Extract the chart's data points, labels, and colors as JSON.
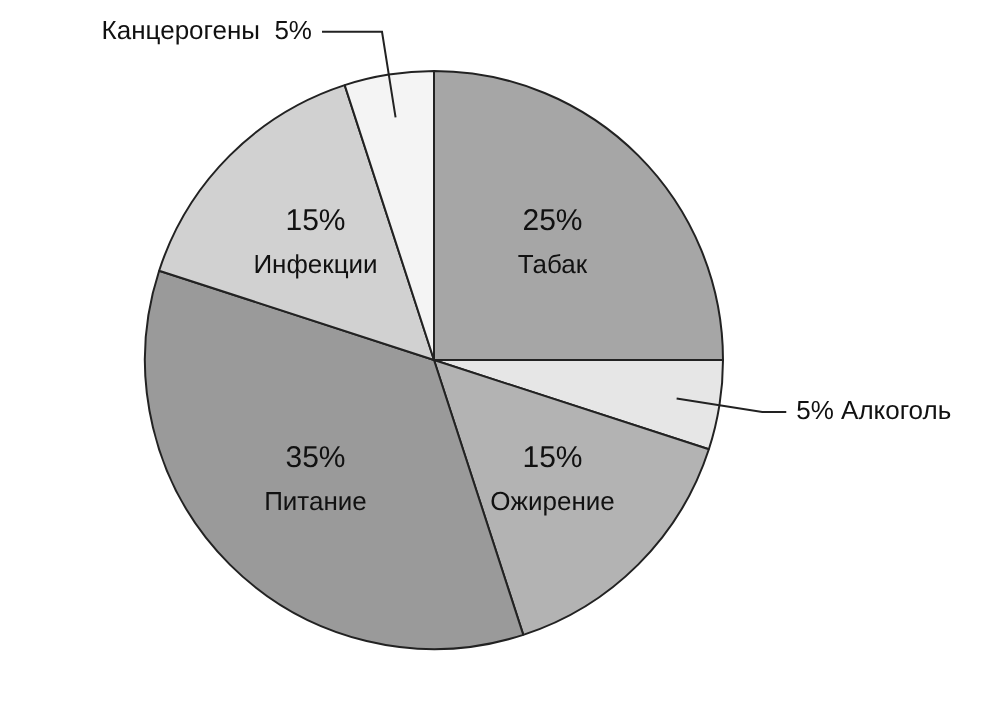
{
  "chart_data": {
    "type": "pie",
    "categories": [
      "Табак",
      "Алкоголь",
      "Ожирение",
      "Питание",
      "Инфекции",
      "Канцерогены"
    ],
    "values": [
      25,
      5,
      15,
      35,
      15,
      5
    ],
    "value_labels": [
      "25%",
      "5%",
      "15%",
      "35%",
      "15%",
      "5%"
    ],
    "colors": [
      "#a6a6a6",
      "#e6e6e6",
      "#b3b3b3",
      "#9a9a9a",
      "#d1d1d1",
      "#f4f4f4"
    ],
    "legend": false
  }
}
